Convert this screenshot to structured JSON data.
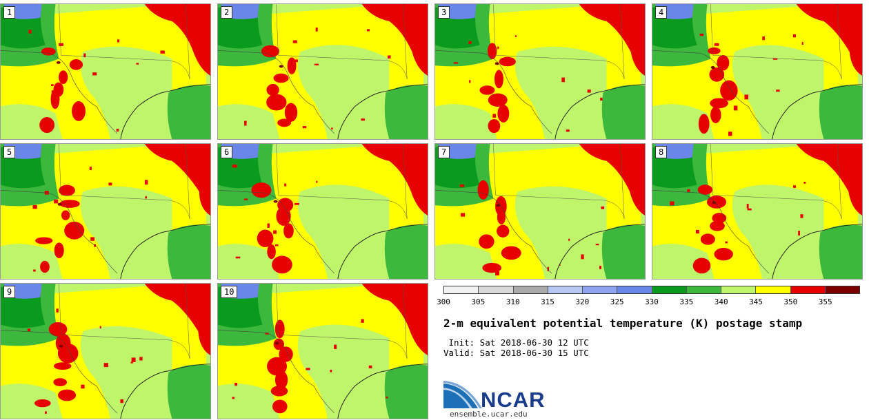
{
  "stamps": [
    {
      "label": "1"
    },
    {
      "label": "2"
    },
    {
      "label": "3"
    },
    {
      "label": "4"
    },
    {
      "label": "5"
    },
    {
      "label": "6"
    },
    {
      "label": "7"
    },
    {
      "label": "8"
    },
    {
      "label": "9"
    },
    {
      "label": "10"
    }
  ],
  "colorbar": {
    "ticks": [
      "300",
      "305",
      "310",
      "315",
      "320",
      "325",
      "330",
      "335",
      "340",
      "345",
      "350",
      "355"
    ],
    "colors": [
      "#f2f2f2",
      "#d9d9d9",
      "#aaaaaa",
      "#b7c8f5",
      "#8fa4f0",
      "#6a86e8",
      "#0a9a1e",
      "#3cb83c",
      "#bff56a",
      "#ffff00",
      "#e60000",
      "#7a0000"
    ]
  },
  "title": "2-m equivalent potential temperature (K) postage stamp",
  "init": " Init: Sat 2018-06-30 12 UTC",
  "valid": "Valid: Sat 2018-06-30 15 UTC",
  "logo": {
    "name": "NCAR",
    "site": "ensemble.ucar.edu"
  },
  "map_colors": {
    "low_green": "#0a9a1e",
    "mid_green": "#3cb83c",
    "light_green": "#bff56a",
    "yellow": "#ffff00",
    "red": "#e60000",
    "dark_red": "#7a0000",
    "blue": "#6a86e8"
  }
}
